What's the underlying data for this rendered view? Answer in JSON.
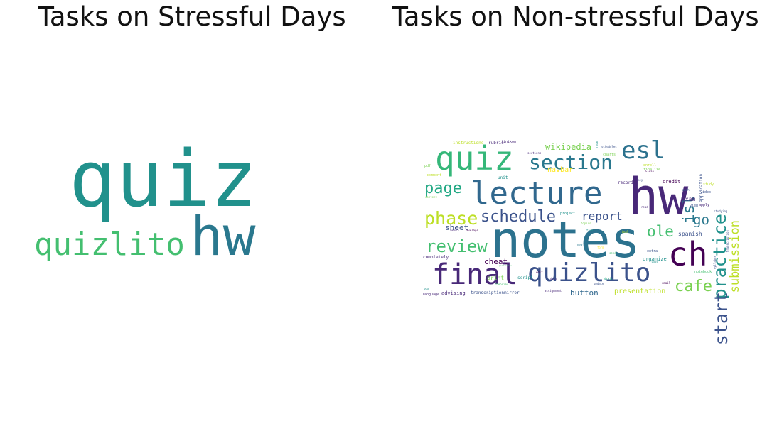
{
  "titles": {
    "left": "Tasks on Stressful Days",
    "right": "Tasks on Non-stressful Days"
  },
  "palette": {
    "teal": "#21918c",
    "green": "#44bf70",
    "yellow": "#bddf26",
    "purple": "#440154",
    "indigo": "#3b528b",
    "blue": "#31688e"
  },
  "left_words": [
    {
      "t": "quiz",
      "c": "#21918c"
    },
    {
      "t": "quizlito",
      "c": "#44bf70"
    },
    {
      "t": "hw",
      "c": "#2a788e"
    }
  ],
  "right_words": [
    {
      "t": "notes",
      "c": "#2c728e"
    },
    {
      "t": "hw",
      "c": "#482878"
    },
    {
      "t": "lecture",
      "c": "#31688e"
    },
    {
      "t": "quiz",
      "c": "#35b779"
    },
    {
      "t": "ch",
      "c": "#440154"
    },
    {
      "t": "final",
      "c": "#482878"
    },
    {
      "t": "quizlito",
      "c": "#3b528b"
    },
    {
      "t": "esl",
      "c": "#2c728e"
    },
    {
      "t": "section",
      "c": "#2a788e"
    },
    {
      "t": "practice",
      "c": "#21918c"
    },
    {
      "t": "start",
      "c": "#3b528b"
    },
    {
      "t": "isl",
      "c": "#2a788e"
    },
    {
      "t": "submission",
      "c": "#bddf26"
    },
    {
      "t": "page",
      "c": "#22a884"
    },
    {
      "t": "phase",
      "c": "#bddf26"
    },
    {
      "t": "schedule",
      "c": "#3b528b"
    },
    {
      "t": "review",
      "c": "#44bf70"
    },
    {
      "t": "report",
      "c": "#3b528b"
    },
    {
      "t": "ole",
      "c": "#44bf70"
    },
    {
      "t": "go",
      "c": "#2a788e"
    },
    {
      "t": "cafe",
      "c": "#7ad151"
    },
    {
      "t": "wikipedia",
      "c": "#7ad151"
    },
    {
      "t": "navbar",
      "c": "#fde725"
    },
    {
      "t": "sheet",
      "c": "#3b528b"
    },
    {
      "t": "cheat",
      "c": "#440154"
    },
    {
      "t": "button",
      "c": "#31688e"
    },
    {
      "t": "presentation",
      "c": "#bddf26"
    },
    {
      "t": "exam",
      "c": "#482878"
    },
    {
      "t": "spanish",
      "c": "#3b528b"
    },
    {
      "t": "organize",
      "c": "#21918c"
    },
    {
      "t": "instructions",
      "c": "#bddf26"
    },
    {
      "t": "rubric",
      "c": "#482878"
    },
    {
      "t": "tinikom",
      "c": "#482878"
    },
    {
      "t": "advising",
      "c": "#482878"
    },
    {
      "t": "transcriptionmirror",
      "c": "#3b528b"
    },
    {
      "t": "completely",
      "c": "#482878"
    },
    {
      "t": "print",
      "c": "#7ad151"
    },
    {
      "t": "credit",
      "c": "#440154"
    },
    {
      "t": "record",
      "c": "#482878"
    },
    {
      "t": "video",
      "c": "#3b528b"
    },
    {
      "t": "project",
      "c": "#21918c"
    },
    {
      "t": "view",
      "c": "#3b528b"
    },
    {
      "t": "study",
      "c": "#bddf26"
    },
    {
      "t": "apply",
      "c": "#482878"
    },
    {
      "t": "studying",
      "c": "#3b528b"
    },
    {
      "t": "application",
      "c": "#3b528b"
    },
    {
      "t": "transcription",
      "c": "#3b528b"
    },
    {
      "t": "unit",
      "c": "#21918c"
    },
    {
      "t": "script",
      "c": "#21918c"
    },
    {
      "t": "charts",
      "c": "#7ad151"
    },
    {
      "t": "notebook",
      "c": "#44bf70"
    },
    {
      "t": "assignment",
      "c": "#482878"
    },
    {
      "t": "syllabus",
      "c": "#3b528b"
    },
    {
      "t": "language",
      "c": "#482878"
    },
    {
      "t": "schedules",
      "c": "#3b528b"
    },
    {
      "t": "comment",
      "c": "#bddf26"
    },
    {
      "t": "pdf",
      "c": "#7ad151"
    },
    {
      "t": "extra",
      "c": "#3b528b"
    },
    {
      "t": "class",
      "c": "#440154"
    },
    {
      "t": "box",
      "c": "#21918c"
    },
    {
      "t": "task",
      "c": "#21918c"
    },
    {
      "t": "topics",
      "c": "#7ad151"
    },
    {
      "t": "theories",
      "c": "#44bf70"
    },
    {
      "t": "numbers",
      "c": "#482878"
    },
    {
      "t": "average",
      "c": "#440154"
    },
    {
      "t": "permission",
      "c": "#44bf70"
    },
    {
      "t": "content",
      "c": "#7ad151"
    },
    {
      "t": "enroll",
      "c": "#bddf26"
    },
    {
      "t": "finalize",
      "c": "#7ad151"
    },
    {
      "t": "update",
      "c": "#3b528b"
    },
    {
      "t": "sections",
      "c": "#482878"
    },
    {
      "t": "room",
      "c": "#21918c"
    },
    {
      "t": "docs",
      "c": "#482878"
    },
    {
      "t": "new",
      "c": "#2a788e"
    },
    {
      "t": "draft",
      "c": "#22a884"
    },
    {
      "t": "email",
      "c": "#440154"
    },
    {
      "t": "form",
      "c": "#fde725"
    },
    {
      "t": "key",
      "c": "#3b528b"
    },
    {
      "t": "math",
      "c": "#3b528b"
    },
    {
      "t": "read",
      "c": "#482878"
    },
    {
      "t": "labs",
      "c": "#21918c"
    },
    {
      "t": "final",
      "c": "#bddf26"
    },
    {
      "t": "edit",
      "c": "#440154"
    },
    {
      "t": "send",
      "c": "#44bf70"
    }
  ]
}
